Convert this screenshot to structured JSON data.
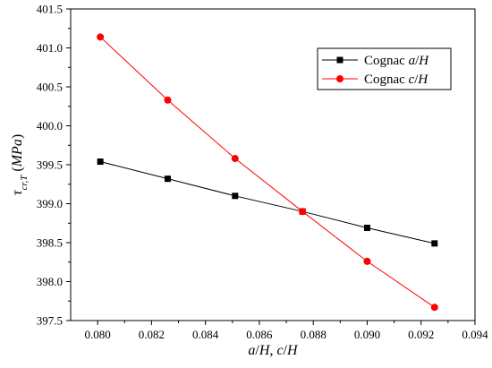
{
  "chart_data": {
    "type": "line",
    "title": "",
    "xlabel": {
      "parts": [
        {
          "text": "a",
          "style": "italic"
        },
        {
          "text": "/",
          "style": "normal"
        },
        {
          "text": "H",
          "style": "italic"
        },
        {
          "text": ", ",
          "style": "normal"
        },
        {
          "text": "c",
          "style": "italic"
        },
        {
          "text": "/",
          "style": "normal"
        },
        {
          "text": "H",
          "style": "italic"
        }
      ]
    },
    "ylabel": {
      "parts": [
        {
          "text": "τ",
          "style": "italic"
        },
        {
          "text": "cr,T",
          "style": "italic-sub"
        },
        {
          "text": " (",
          "style": "normal"
        },
        {
          "text": "MPa",
          "style": "italic"
        },
        {
          "text": ")",
          "style": "normal"
        }
      ]
    },
    "xlim": [
      0.079,
      0.094
    ],
    "ylim": [
      397.5,
      401.5
    ],
    "x_ticks": [
      "0.080",
      "0.082",
      "0.084",
      "0.086",
      "0.088",
      "0.090",
      "0.092",
      "0.094"
    ],
    "y_ticks": [
      "397.5",
      "398.0",
      "398.5",
      "399.0",
      "399.5",
      "400.0",
      "400.5",
      "401.0",
      "401.5"
    ],
    "legend_position": "top-right",
    "series": [
      {
        "name": {
          "parts": [
            {
              "text": "Cognac ",
              "style": "normal"
            },
            {
              "text": "a",
              "style": "italic"
            },
            {
              "text": "/",
              "style": "normal"
            },
            {
              "text": "H",
              "style": "italic"
            }
          ]
        },
        "color": "#000000",
        "marker": "square",
        "x": [
          0.0801,
          0.0826,
          0.0851,
          0.0876,
          0.09,
          0.0925
        ],
        "y": [
          399.54,
          399.32,
          399.1,
          398.9,
          398.69,
          398.49
        ]
      },
      {
        "name": {
          "parts": [
            {
              "text": "Cognac ",
              "style": "normal"
            },
            {
              "text": "c",
              "style": "italic"
            },
            {
              "text": "/",
              "style": "normal"
            },
            {
              "text": "H",
              "style": "italic"
            }
          ]
        },
        "color": "#ff0000",
        "marker": "circle",
        "x": [
          0.0801,
          0.0826,
          0.0851,
          0.0876,
          0.09,
          0.0925
        ],
        "y": [
          401.14,
          400.33,
          399.58,
          398.9,
          398.26,
          397.67
        ]
      }
    ]
  }
}
